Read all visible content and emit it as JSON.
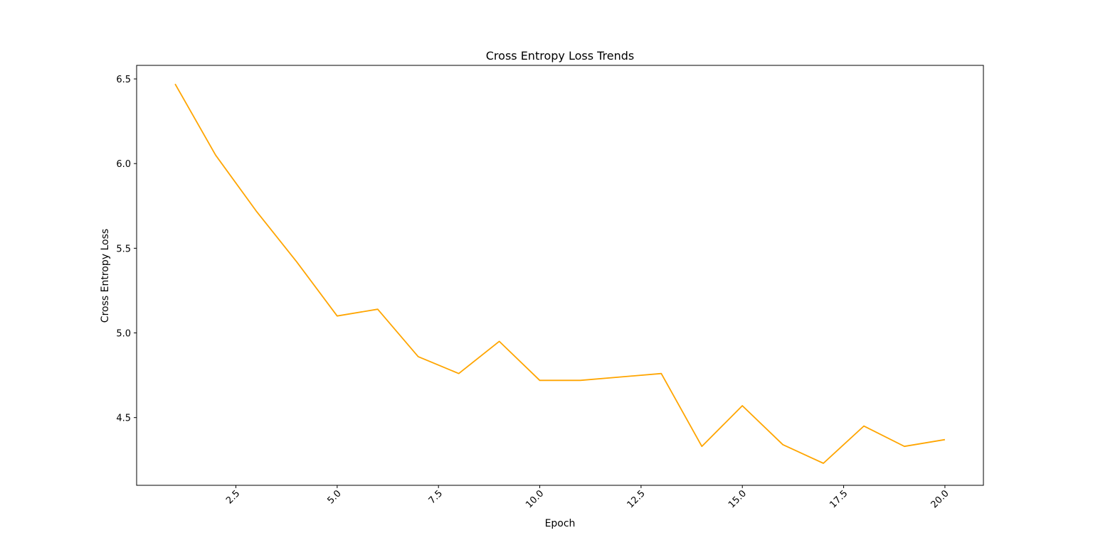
{
  "chart_data": {
    "type": "line",
    "title": "Cross Entropy Loss Trends",
    "xlabel": "Epoch",
    "ylabel": "Cross Entropy Loss",
    "xlim": [
      0.05,
      20.95
    ],
    "ylim": [
      4.1,
      6.58
    ],
    "x_ticks": [
      2.5,
      5.0,
      7.5,
      10.0,
      12.5,
      15.0,
      17.5,
      20.0
    ],
    "y_ticks": [
      4.5,
      5.0,
      5.5,
      6.0,
      6.5
    ],
    "grid": false,
    "line_color": "#FFA500",
    "series": [
      {
        "x": [
          1,
          2,
          3,
          4,
          5,
          6,
          7,
          8,
          9,
          10,
          11,
          12,
          13,
          14,
          15,
          16,
          17,
          18,
          19,
          20
        ],
        "values": [
          6.47,
          6.05,
          5.72,
          5.42,
          5.1,
          5.14,
          4.86,
          4.76,
          4.95,
          4.72,
          4.72,
          4.74,
          4.76,
          4.33,
          4.57,
          4.34,
          4.23,
          4.45,
          4.33,
          4.37
        ]
      }
    ]
  }
}
